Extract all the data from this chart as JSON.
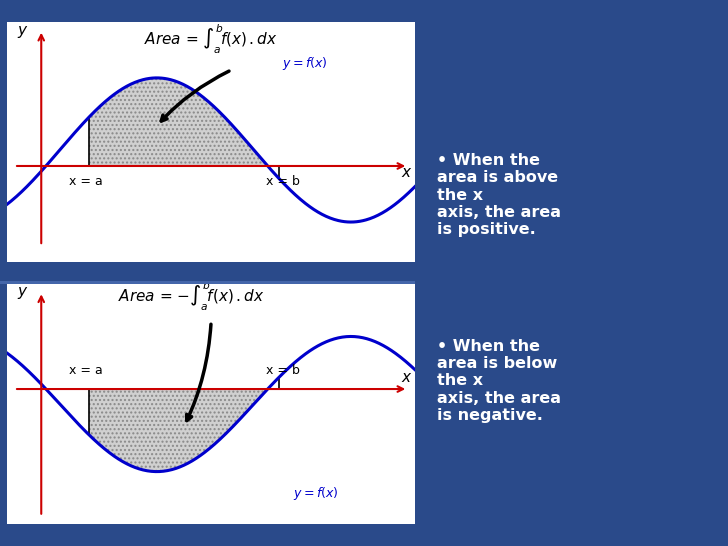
{
  "bg_color": "#2a4a8a",
  "panel_bg": "#ffffff",
  "curve_color": "#0000cc",
  "axis_color": "#cc0000",
  "fill_color": "#c8c8c8",
  "fill_alpha": 0.7,
  "text_color_dark": "#000000",
  "text_color_light": "#ffffff",
  "bullet_text_1": "When the\narea is above\nthe x\naxis, the area\nis positive.",
  "bullet_text_2": "When the\narea is below\nthe x\naxis, the area\nis negative.",
  "formula_pos": "Area = $\\int_a^b f(x)\\,.dx$",
  "formula_neg": "Area = $-\\int_a^b f(x)\\,.dx$",
  "label_yfx": "$y = f(x)$",
  "label_y": "y",
  "label_x": "x",
  "label_xa": "x = a",
  "label_xb": "x = b"
}
